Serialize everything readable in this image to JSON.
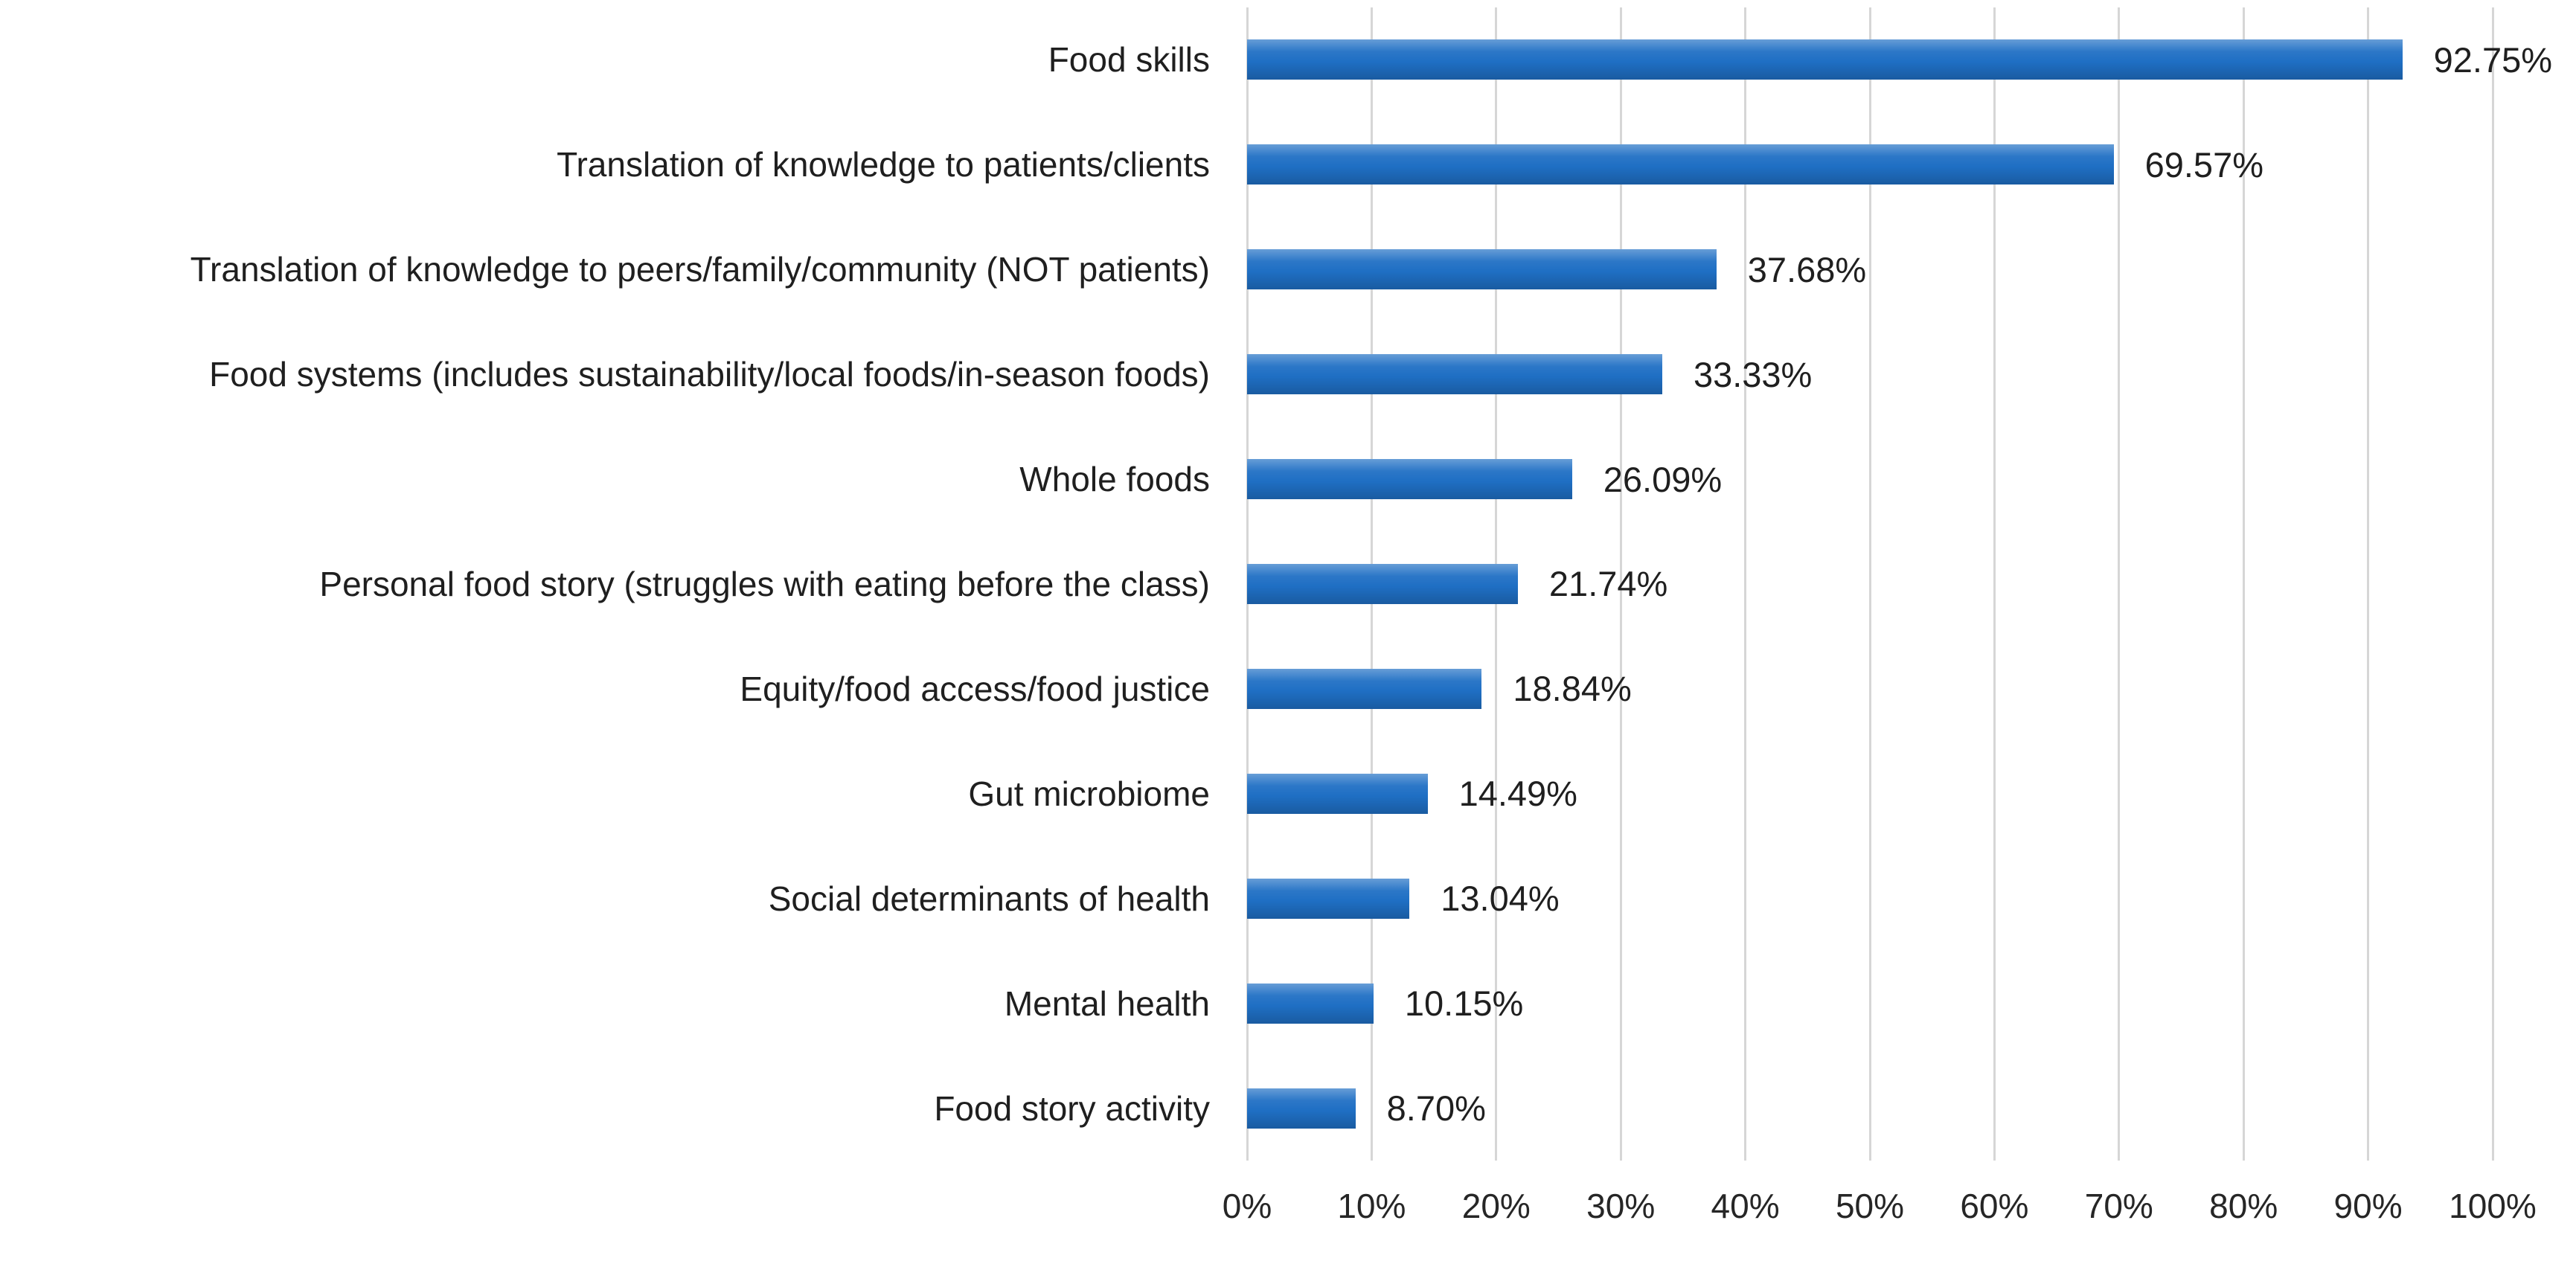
{
  "chart_data": {
    "type": "bar",
    "orientation": "horizontal",
    "title": "",
    "xlabel": "",
    "ylabel": "",
    "xlim": [
      0,
      100
    ],
    "grid": true,
    "legend": "none",
    "bar_color": "#1f6fc4",
    "gridline_color": "#d6d6d6",
    "categories": [
      "Food skills",
      "Translation of knowledge to patients/clients",
      "Translation of knowledge to peers/family/community (NOT patients)",
      "Food systems (includes sustainability/local foods/in-season foods)",
      "Whole foods",
      "Personal food story (struggles with eating before the class)",
      "Equity/food access/food justice",
      "Gut microbiome",
      "Social determinants of health",
      "Mental health",
      "Food story activity"
    ],
    "values": [
      92.75,
      69.57,
      37.68,
      33.33,
      26.09,
      21.74,
      18.84,
      14.49,
      13.04,
      10.15,
      8.7
    ],
    "value_labels": [
      "92.75%",
      "69.57%",
      "37.68%",
      "33.33%",
      "26.09%",
      "21.74%",
      "18.84%",
      "14.49%",
      "13.04%",
      "10.15%",
      "8.70%"
    ],
    "x_ticks": [
      "0%",
      "10%",
      "20%",
      "30%",
      "40%",
      "50%",
      "60%",
      "70%",
      "80%",
      "90%",
      "100%"
    ]
  }
}
